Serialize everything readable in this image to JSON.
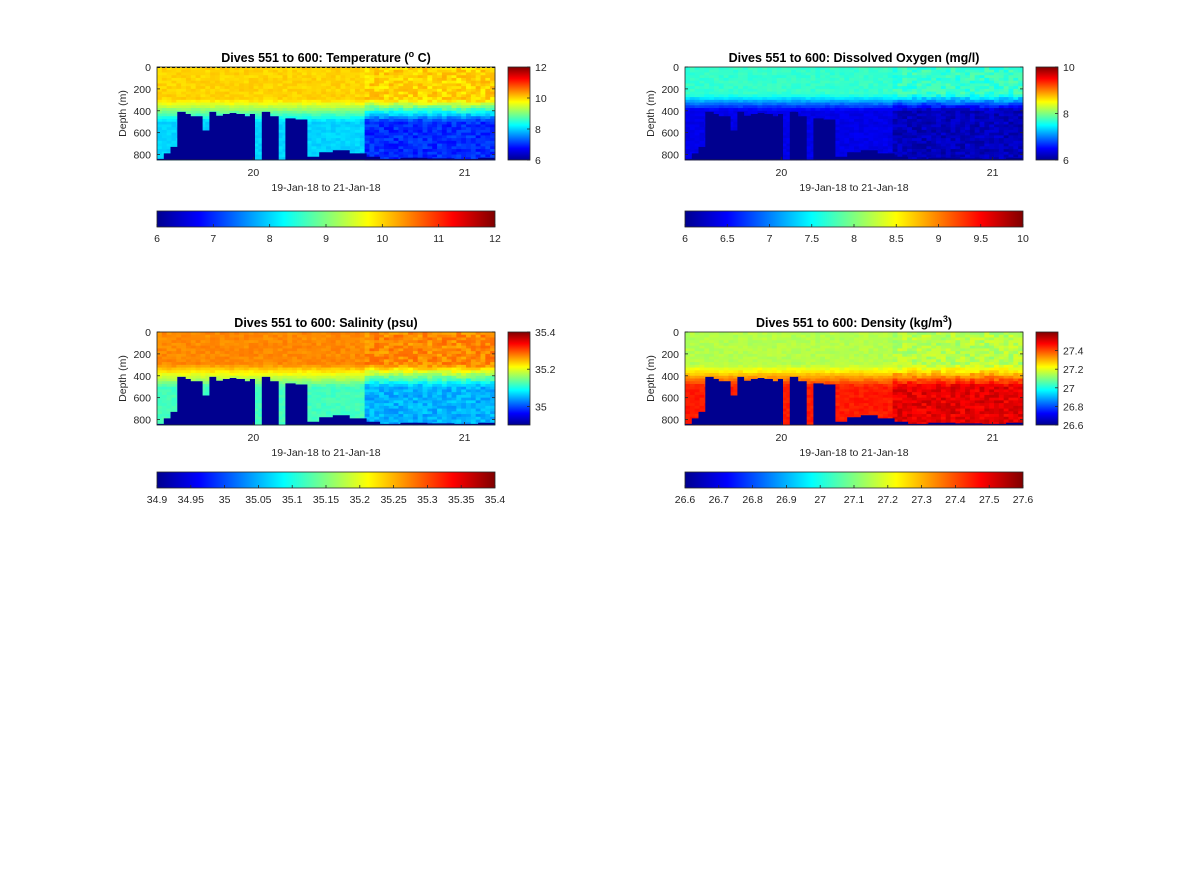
{
  "chart_data": [
    {
      "type": "heatmap",
      "title": "Dives 551 to 600: Temperature (° C)",
      "title_prefix": "Dives 551 to 600: Temperature (",
      "title_sup": "o",
      "title_suffix": " C)",
      "xlabel": "19-Jan-18 to 21-Jan-18",
      "ylabel": "Depth (m)",
      "x_ticks": [
        "20",
        "21"
      ],
      "y_ticks": [
        "0",
        "200",
        "400",
        "600",
        "800"
      ],
      "colorbar_ticks": [
        "12",
        "10",
        "8",
        "6"
      ],
      "horizontal_colorbar_ticks": [
        "6",
        "7",
        "8",
        "9",
        "10",
        "11",
        "12"
      ],
      "clim": [
        6,
        12
      ],
      "colormap": "jet",
      "max_depth_m": 850,
      "surface_layer": {
        "depth_range_m": [
          0,
          300
        ],
        "value": 10
      },
      "deep_layer": {
        "depth_range_m": [
          500,
          850
        ],
        "value": 8
      },
      "late_deep_value": 7,
      "bottom_mask_color": "#00008f",
      "dashed_surface_line": true
    },
    {
      "type": "heatmap",
      "title": "Dives 551 to 600: Dissolved Oxygen (mg/l)",
      "title_prefix": "Dives 551 to 600: Dissolved Oxygen (mg/l)",
      "title_sup": "",
      "title_suffix": "",
      "xlabel": "19-Jan-18 to 21-Jan-18",
      "ylabel": "Depth (m)",
      "x_ticks": [
        "20",
        "21"
      ],
      "y_ticks": [
        "0",
        "200",
        "400",
        "600",
        "800"
      ],
      "colorbar_ticks": [
        "10",
        "8",
        "6"
      ],
      "horizontal_colorbar_ticks": [
        "6",
        "6.5",
        "7",
        "7.5",
        "8",
        "8.5",
        "9",
        "9.5",
        "10"
      ],
      "clim": [
        6,
        10
      ],
      "colormap": "jet",
      "max_depth_m": 850,
      "surface_layer": {
        "depth_range_m": [
          0,
          250
        ],
        "value": 7.7
      },
      "deep_layer": {
        "depth_range_m": [
          400,
          850
        ],
        "value": 6.4
      },
      "late_deep_value": 6.2,
      "bottom_mask_color": "#00008f",
      "dashed_surface_line": false
    },
    {
      "type": "heatmap",
      "title": "Dives 551 to 600: Salinity (psu)",
      "title_prefix": "Dives 551 to 600: Salinity (psu)",
      "title_sup": "",
      "title_suffix": "",
      "xlabel": "19-Jan-18 to 21-Jan-18",
      "ylabel": "Depth (m)",
      "x_ticks": [
        "20",
        "21"
      ],
      "y_ticks": [
        "0",
        "200",
        "400",
        "600",
        "800"
      ],
      "colorbar_ticks": [
        "35.4",
        "35.2",
        "35"
      ],
      "horizontal_colorbar_ticks": [
        "34.9",
        "34.95",
        "35",
        "35.05",
        "35.1",
        "35.15",
        "35.2",
        "35.25",
        "35.3",
        "35.35",
        "35.4"
      ],
      "clim": [
        34.9,
        35.4
      ],
      "colormap": "jet",
      "max_depth_m": 850,
      "surface_layer": {
        "depth_range_m": [
          0,
          300
        ],
        "value": 35.27
      },
      "deep_layer": {
        "depth_range_m": [
          500,
          850
        ],
        "value": 35.12
      },
      "late_deep_value": 35.05,
      "bottom_mask_color": "#00008f",
      "dashed_surface_line": false
    },
    {
      "type": "heatmap",
      "title": "Dives 551 to 600: Density (kg/m³)",
      "title_prefix": "Dives 551 to 600: Density (kg/m",
      "title_sup": "3",
      "title_suffix": ")",
      "xlabel": "19-Jan-18 to 21-Jan-18",
      "ylabel": "Depth (m)",
      "x_ticks": [
        "20",
        "21"
      ],
      "y_ticks": [
        "0",
        "200",
        "400",
        "600",
        "800"
      ],
      "colorbar_ticks": [
        "27.4",
        "27.2",
        "27",
        "26.8",
        "26.6"
      ],
      "horizontal_colorbar_ticks": [
        "26.6",
        "26.7",
        "26.8",
        "26.9",
        "27",
        "27.1",
        "27.2",
        "27.3",
        "27.4",
        "27.5",
        "27.6"
      ],
      "clim": [
        26.6,
        27.6
      ],
      "colormap": "jet",
      "max_depth_m": 850,
      "surface_layer": {
        "depth_range_m": [
          0,
          300
        ],
        "value": 27.15
      },
      "deep_layer": {
        "depth_range_m": [
          500,
          850
        ],
        "value": 27.45
      },
      "late_deep_value": 27.5,
      "bottom_mask_color": "#00008f",
      "dashed_surface_line": false
    }
  ]
}
